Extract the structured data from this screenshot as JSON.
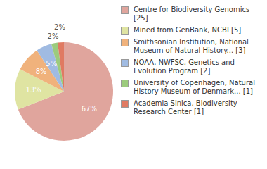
{
  "chart_data": {
    "type": "pie",
    "categories": [
      "Centre for Biodiversity Genomics [25]",
      "Mined from GenBank, NCBI [5]",
      "Smithsonian Institution, National Museum of Natural History... [3]",
      "NOAA, NWFSC, Genetics and Evolution Program [2]",
      "University of Copenhagen, Natural History Museum of Denmark... [1]",
      "Academia Sinica, Biodiversity Research Center [1]"
    ],
    "values": [
      67,
      13,
      8,
      5,
      2,
      2
    ],
    "value_labels": [
      "67%",
      "13%",
      "8%",
      "5%",
      "2%",
      "2%"
    ],
    "colors": [
      "#e0a59d",
      "#dfe4a2",
      "#f0b27c",
      "#a0bbe2",
      "#9ccb7d",
      "#e07a62"
    ],
    "data_labels": true,
    "legend": "right"
  }
}
